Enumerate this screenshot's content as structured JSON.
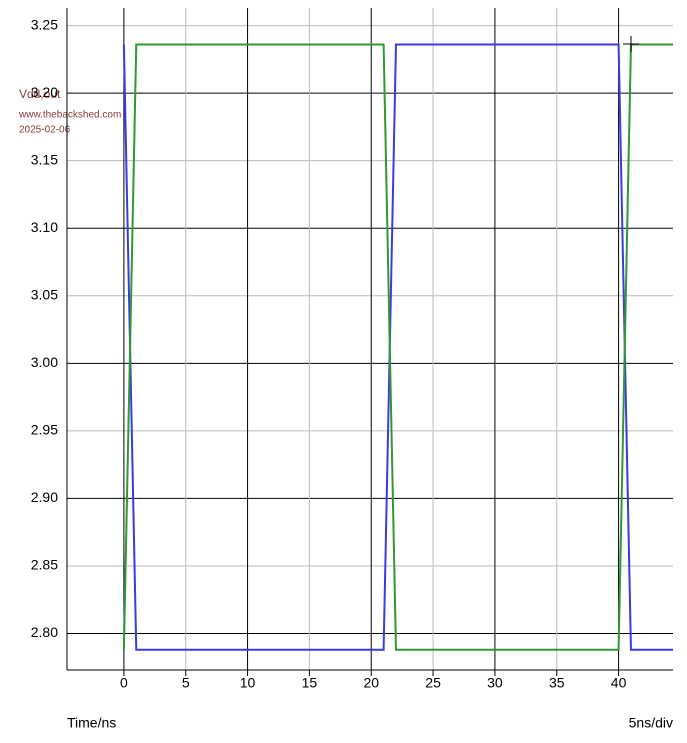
{
  "chart_data": {
    "type": "line",
    "x_label": "Time/ns",
    "scale_label": "5ns/div",
    "annotations": [
      "Vdd,out",
      "www.thebackshed.com",
      "2025-02-06"
    ],
    "xlim": [
      -4.6,
      44.4
    ],
    "ylim": [
      2.773,
      3.263
    ],
    "xticks": [
      0,
      5,
      10,
      15,
      20,
      25,
      30,
      35,
      40
    ],
    "yticks": [
      {
        "value": 2.8,
        "label": "2.80"
      },
      2.85,
      {
        "value": 2.9,
        "label": "2.90"
      },
      2.95,
      {
        "value": 3.0,
        "label": "3.00"
      },
      3.05,
      {
        "value": 3.1,
        "label": "3.10"
      },
      3.15,
      {
        "value": 3.2,
        "label": "3.20"
      },
      3.25
    ],
    "grid": true,
    "x": [
      0,
      1,
      21,
      22,
      40,
      41,
      44.4
    ],
    "series": [
      {
        "color": "#3b3be0",
        "values": [
          3.236,
          2.788,
          2.788,
          3.236,
          3.236,
          2.788,
          2.788
        ]
      },
      {
        "color": "#2f9a2f",
        "values": [
          2.788,
          3.236,
          3.236,
          2.788,
          2.788,
          3.236,
          3.236
        ]
      }
    ]
  }
}
